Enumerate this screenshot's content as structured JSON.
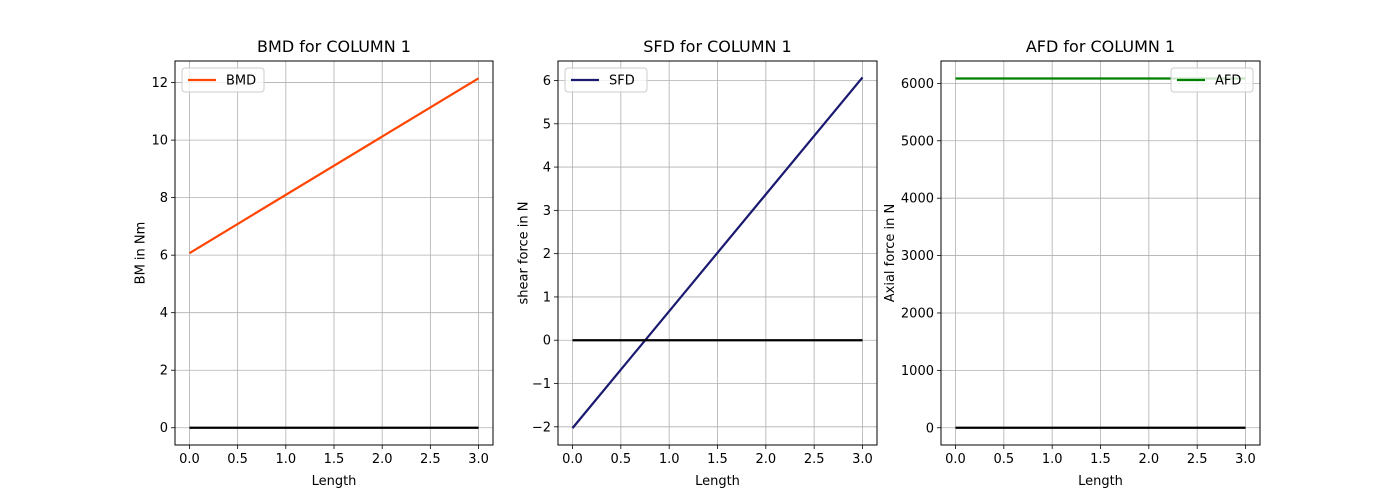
{
  "chart_data": [
    {
      "type": "line",
      "title": "BMD for COLUMN 1",
      "xlabel": "Length",
      "ylabel": "BM in Nm",
      "xlim": [
        -0.15,
        3.15
      ],
      "ylim": [
        -0.6,
        12.75
      ],
      "xticks": [
        0.0,
        0.5,
        1.0,
        1.5,
        2.0,
        2.5,
        3.0
      ],
      "xtick_labels": [
        "0.0",
        "0.5",
        "1.0",
        "1.5",
        "2.0",
        "2.5",
        "3.0"
      ],
      "yticks": [
        0,
        2,
        4,
        6,
        8,
        10,
        12
      ],
      "ytick_labels": [
        "0",
        "2",
        "4",
        "6",
        "8",
        "10",
        "12"
      ],
      "grid": true,
      "legend": "upper-left",
      "series": [
        {
          "name": "BMD",
          "color": "#ff4500",
          "x": [
            0,
            3
          ],
          "y": [
            6.07,
            12.15
          ]
        },
        {
          "name": "",
          "color": "#000000",
          "x": [
            0,
            3
          ],
          "y": [
            0,
            0
          ]
        }
      ]
    },
    {
      "type": "line",
      "title": "SFD for COLUMN 1",
      "xlabel": "Length",
      "ylabel": "shear force in N",
      "xlim": [
        -0.15,
        3.15
      ],
      "ylim": [
        -2.42,
        6.45
      ],
      "xticks": [
        0.0,
        0.5,
        1.0,
        1.5,
        2.0,
        2.5,
        3.0
      ],
      "xtick_labels": [
        "0.0",
        "0.5",
        "1.0",
        "1.5",
        "2.0",
        "2.5",
        "3.0"
      ],
      "yticks": [
        -2,
        -1,
        0,
        1,
        2,
        3,
        4,
        5,
        6
      ],
      "ytick_labels": [
        "−2",
        "−1",
        "0",
        "1",
        "2",
        "3",
        "4",
        "5",
        "6"
      ],
      "grid": true,
      "legend": "upper-left",
      "series": [
        {
          "name": "SFD",
          "color": "#191970",
          "x": [
            0,
            3
          ],
          "y": [
            -2.03,
            6.07
          ]
        },
        {
          "name": "",
          "color": "#000000",
          "x": [
            0,
            3
          ],
          "y": [
            0,
            0
          ]
        }
      ]
    },
    {
      "type": "line",
      "title": "AFD for COLUMN 1",
      "xlabel": "Length",
      "ylabel": "Axial force in N",
      "xlim": [
        -0.15,
        3.15
      ],
      "ylim": [
        -300,
        6390
      ],
      "xticks": [
        0.0,
        0.5,
        1.0,
        1.5,
        2.0,
        2.5,
        3.0
      ],
      "xtick_labels": [
        "0.0",
        "0.5",
        "1.0",
        "1.5",
        "2.0",
        "2.5",
        "3.0"
      ],
      "yticks": [
        0,
        1000,
        2000,
        3000,
        4000,
        5000,
        6000
      ],
      "ytick_labels": [
        "0",
        "1000",
        "2000",
        "3000",
        "4000",
        "5000",
        "6000"
      ],
      "grid": true,
      "legend": "upper-right",
      "series": [
        {
          "name": "AFD",
          "color": "#008000",
          "x": [
            0,
            3
          ],
          "y": [
            6085,
            6085
          ]
        },
        {
          "name": "",
          "color": "#000000",
          "x": [
            0,
            3
          ],
          "y": [
            0,
            0
          ]
        }
      ]
    }
  ]
}
